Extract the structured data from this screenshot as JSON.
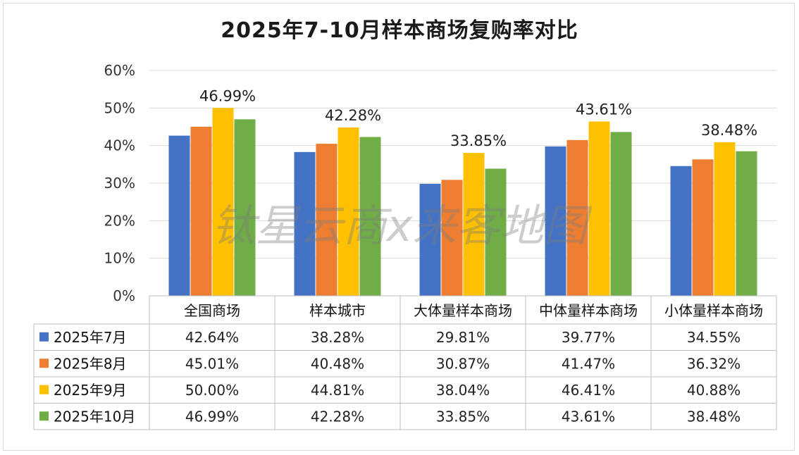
{
  "chart_data": {
    "type": "bar",
    "title": "2025年7-10月样本商场复购率对比",
    "categories": [
      "全国商场",
      "样本城市",
      "大体量样本商场",
      "中体量样本商场",
      "小体量样本商场"
    ],
    "series": [
      {
        "name": "2025年7月",
        "color": "#4472C4",
        "values": [
          42.64,
          38.28,
          29.81,
          39.77,
          34.55
        ],
        "labels": [
          "42.64%",
          "38.28%",
          "29.81%",
          "39.77%",
          "34.55%"
        ]
      },
      {
        "name": "2025年8月",
        "color": "#ED7D31",
        "values": [
          45.01,
          40.48,
          30.87,
          41.47,
          36.32
        ],
        "labels": [
          "45.01%",
          "40.48%",
          "30.87%",
          "41.47%",
          "36.32%"
        ]
      },
      {
        "name": "2025年9月",
        "color": "#FFC000",
        "values": [
          50.0,
          44.81,
          38.04,
          46.41,
          40.88
        ],
        "labels": [
          "50.00%",
          "44.81%",
          "38.04%",
          "46.41%",
          "40.88%"
        ]
      },
      {
        "name": "2025年10月",
        "color": "#70AD47",
        "values": [
          46.99,
          42.28,
          33.85,
          43.61,
          38.48
        ],
        "labels": [
          "46.99%",
          "42.28%",
          "33.85%",
          "43.61%",
          "38.48%"
        ]
      }
    ],
    "data_labels_series": "2025年10月",
    "ylim": [
      0,
      60
    ],
    "yticks": [
      0,
      10,
      20,
      30,
      40,
      50,
      60
    ],
    "ytick_labels": [
      "0%",
      "10%",
      "20%",
      "30%",
      "40%",
      "50%",
      "60%"
    ],
    "grid": true,
    "legend": "data-table",
    "watermark": "钛星云商x来客地图"
  }
}
